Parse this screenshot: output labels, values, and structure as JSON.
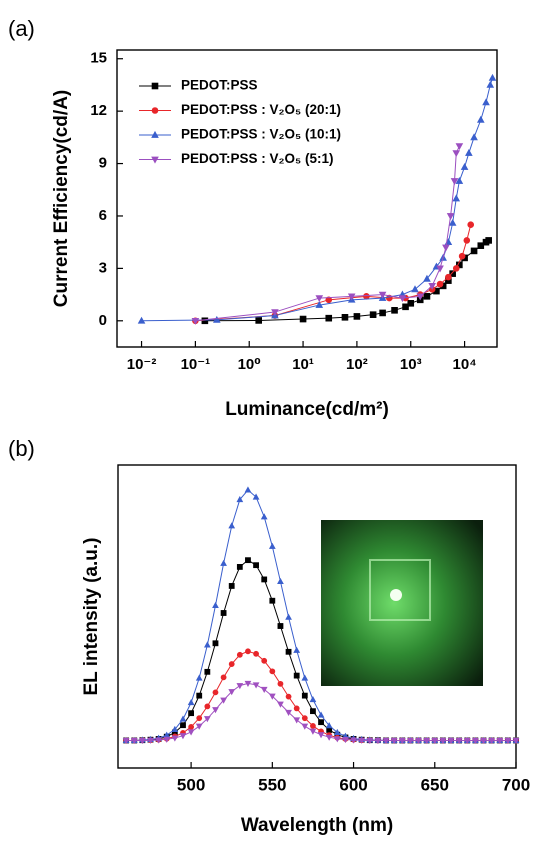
{
  "chart_data": [
    {
      "type": "line",
      "panel": "(a)",
      "x_label": "Luminance(cd/m²)",
      "y_label": "Current Efficiency(cd/A)",
      "xscale": "log",
      "xlim": [
        0.0035,
        40000
      ],
      "xticks": [
        {
          "value": 0.01,
          "label": "10⁻²"
        },
        {
          "value": 0.1,
          "label": "10⁻¹"
        },
        {
          "value": 1,
          "label": "10⁰"
        },
        {
          "value": 10,
          "label": "10¹"
        },
        {
          "value": 100,
          "label": "10²"
        },
        {
          "value": 1000,
          "label": "10³"
        },
        {
          "value": 10000,
          "label": "10⁴"
        }
      ],
      "ylim": [
        -1.5,
        15.5
      ],
      "yticks": [
        0,
        3,
        6,
        9,
        12,
        15
      ],
      "legend": "upper left",
      "series": [
        {
          "name": "PEDOT:PSS",
          "color": "#000000",
          "marker": "square",
          "x": [
            0.15,
            1.5,
            10,
            30,
            60,
            100,
            200,
            300,
            500,
            800,
            1000,
            1500,
            2000,
            3000,
            4000,
            5000,
            6000,
            8000,
            10000,
            15000,
            20000,
            25000,
            28000
          ],
          "values": [
            0,
            0.02,
            0.1,
            0.15,
            0.2,
            0.25,
            0.35,
            0.45,
            0.6,
            0.8,
            1.0,
            1.2,
            1.4,
            1.7,
            2.0,
            2.3,
            2.7,
            3.2,
            3.6,
            4.0,
            4.3,
            4.5,
            4.6
          ]
        },
        {
          "name": "PEDOT:PSS : V₂O₅ (20:1)",
          "color": "#e8262a",
          "marker": "circle",
          "x": [
            0.1,
            3,
            30,
            150,
            400,
            800,
            1500,
            2500,
            3500,
            5000,
            7000,
            9000,
            11000,
            13000
          ],
          "values": [
            0,
            0.3,
            1.2,
            1.4,
            1.3,
            1.3,
            1.5,
            1.8,
            2.1,
            2.5,
            3.0,
            3.7,
            4.6,
            5.5
          ]
        },
        {
          "name": "PEDOT:PSS : V₂O₅ (10:1)",
          "color": "#3a5fcd",
          "marker": "triangle-up",
          "x": [
            0.01,
            0.25,
            3,
            20,
            80,
            300,
            700,
            1200,
            2000,
            3000,
            4000,
            5000,
            6000,
            7000,
            8000,
            10000,
            12000,
            15000,
            20000,
            25000,
            30000,
            33000
          ],
          "values": [
            0,
            0.05,
            0.3,
            0.9,
            1.2,
            1.3,
            1.5,
            1.8,
            2.4,
            3.1,
            3.6,
            4.5,
            5.6,
            7.0,
            8.0,
            8.8,
            9.6,
            10.5,
            11.5,
            12.5,
            13.5,
            13.9
          ]
        },
        {
          "name": "PEDOT:PSS : V₂O₅ (5:1)",
          "color": "#9b4fc0",
          "marker": "triangle-down",
          "x": [
            0.1,
            3,
            20,
            80,
            300,
            700,
            1500,
            2500,
            3500,
            4500,
            5500,
            6500,
            7000,
            8000
          ],
          "values": [
            0,
            0.5,
            1.3,
            1.4,
            1.5,
            1.3,
            1.4,
            2.0,
            3.0,
            4.2,
            6.0,
            8.0,
            9.6,
            10.0
          ]
        }
      ]
    },
    {
      "type": "line",
      "panel": "(b)",
      "x_label": "Wavelength (nm)",
      "y_label": "EL intensity (a.u.)",
      "xlim": [
        455,
        700
      ],
      "xticks": [
        500,
        550,
        600,
        650,
        700
      ],
      "ylim": [
        -0.11,
        1.1
      ],
      "x": [
        460,
        465,
        470,
        475,
        480,
        485,
        490,
        495,
        500,
        505,
        510,
        515,
        520,
        525,
        530,
        535,
        540,
        545,
        550,
        555,
        560,
        565,
        570,
        575,
        580,
        585,
        590,
        595,
        600,
        605,
        610,
        615,
        620,
        625,
        630,
        635,
        640,
        645,
        650,
        655,
        660,
        665,
        670,
        675,
        680,
        685,
        690,
        695,
        700
      ],
      "series": [
        {
          "color": "#000000",
          "marker": "square",
          "values": [
            0,
            0,
            0.001,
            0.003,
            0.006,
            0.015,
            0.032,
            0.061,
            0.109,
            0.179,
            0.274,
            0.388,
            0.509,
            0.617,
            0.693,
            0.72,
            0.7,
            0.643,
            0.558,
            0.457,
            0.354,
            0.259,
            0.179,
            0.117,
            0.073,
            0.042,
            0.023,
            0.012,
            0.006,
            0.003,
            0.001,
            0.001,
            0,
            0,
            0,
            0,
            0,
            0,
            0,
            0,
            0,
            0,
            0,
            0,
            0,
            0,
            0,
            0,
            0
          ]
        },
        {
          "color": "#e8262a",
          "marker": "circle",
          "values": [
            0,
            0,
            0.001,
            0.001,
            0.003,
            0.007,
            0.016,
            0.03,
            0.054,
            0.089,
            0.136,
            0.192,
            0.252,
            0.305,
            0.342,
            0.356,
            0.346,
            0.318,
            0.276,
            0.226,
            0.175,
            0.128,
            0.089,
            0.058,
            0.036,
            0.021,
            0.011,
            0.006,
            0.003,
            0.001,
            0.001,
            0,
            0,
            0,
            0,
            0,
            0,
            0,
            0,
            0,
            0,
            0,
            0,
            0,
            0,
            0,
            0,
            0,
            0
          ]
        },
        {
          "color": "#3a5fcd",
          "marker": "triangle-up",
          "values": [
            0,
            0,
            0.002,
            0.004,
            0.009,
            0.021,
            0.044,
            0.085,
            0.151,
            0.249,
            0.381,
            0.539,
            0.707,
            0.857,
            0.962,
            1,
            0.972,
            0.893,
            0.775,
            0.635,
            0.492,
            0.36,
            0.249,
            0.163,
            0.101,
            0.059,
            0.032,
            0.017,
            0.008,
            0.004,
            0.002,
            0.001,
            0,
            0,
            0,
            0,
            0,
            0,
            0,
            0,
            0,
            0,
            0,
            0,
            0,
            0,
            0,
            0,
            0
          ]
        },
        {
          "color": "#a050c0",
          "marker": "triangle-down",
          "values": [
            0,
            0,
            0,
            0.001,
            0.002,
            0.005,
            0.01,
            0.019,
            0.034,
            0.057,
            0.087,
            0.123,
            0.161,
            0.195,
            0.219,
            0.228,
            0.222,
            0.204,
            0.177,
            0.145,
            0.112,
            0.082,
            0.057,
            0.037,
            0.023,
            0.013,
            0.007,
            0.004,
            0.002,
            0.001,
            0,
            0,
            0,
            0,
            0,
            0,
            0,
            0,
            0,
            0,
            0,
            0,
            0,
            0,
            0,
            0,
            0,
            0,
            0
          ]
        }
      ]
    }
  ]
}
